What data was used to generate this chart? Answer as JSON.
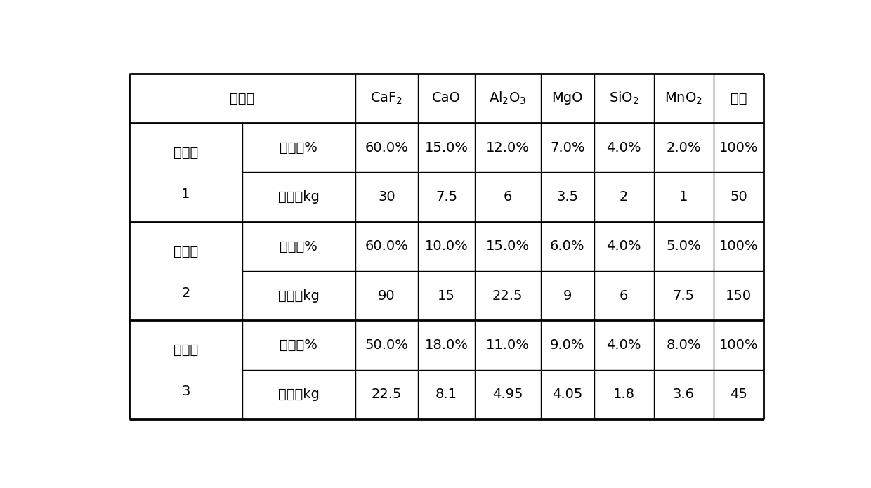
{
  "header_cols": [
    "CaF₂",
    "CaO",
    "Al₂O₃",
    "MgO",
    "SiO₂",
    "MnO₂",
    "合计"
  ],
  "rows": [
    {
      "example_label": "实施例",
      "number_label": "1",
      "sub_rows": [
        {
          "label": "配比，%",
          "values": [
            "60.0%",
            "15.0%",
            "12.0%",
            "7.0%",
            "4.0%",
            "2.0%",
            "100%"
          ]
        },
        {
          "label": "配重，kg",
          "values": [
            "30",
            "7.5",
            "6",
            "3.5",
            "2",
            "1",
            "50"
          ]
        }
      ]
    },
    {
      "example_label": "实施例",
      "number_label": "2",
      "sub_rows": [
        {
          "label": "配比，%",
          "values": [
            "60.0%",
            "10.0%",
            "15.0%",
            "6.0%",
            "4.0%",
            "5.0%",
            "100%"
          ]
        },
        {
          "label": "配重，kg",
          "values": [
            "90",
            "15",
            "22.5",
            "9",
            "6",
            "7.5",
            "150"
          ]
        }
      ]
    },
    {
      "example_label": "实施例",
      "number_label": "3",
      "sub_rows": [
        {
          "label": "配比，%",
          "values": [
            "50.0%",
            "18.0%",
            "11.0%",
            "9.0%",
            "4.0%",
            "8.0%",
            "100%"
          ]
        },
        {
          "label": "配重，kg",
          "values": [
            "22.5",
            "8.1",
            "4.95",
            "4.05",
            "1.8",
            "3.6",
            "45"
          ]
        }
      ]
    }
  ],
  "header_merged_label": "实施例",
  "col_widths_raw": [
    1.8,
    1.8,
    1.0,
    0.9,
    1.05,
    0.85,
    0.95,
    0.95,
    0.8
  ],
  "text_color": "#000000",
  "line_color": "#000000",
  "bg_color": "#ffffff",
  "font_size": 14,
  "header_font_size": 14,
  "thick_lw": 2.0,
  "thin_lw": 1.0
}
